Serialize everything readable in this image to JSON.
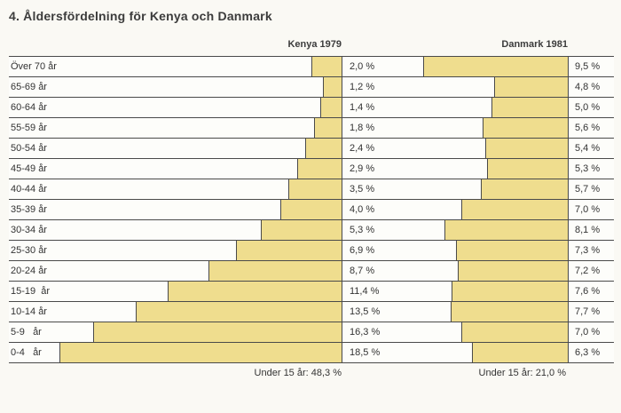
{
  "title": "4. Åldersfördelning för Kenya och Danmark",
  "chart_data": {
    "type": "bar",
    "orientation": "horizontal",
    "title": "4. Åldersfördelning för Kenya och Danmark",
    "categories": [
      "Över 70 år",
      "65-69 år",
      "60-64 år",
      "55-59 år",
      "50-54 år",
      "45-49 år",
      "40-44 år",
      "35-39 år",
      "30-34 år",
      "25-30 år",
      "20-24 år",
      "15-19  år",
      "10-14 år",
      "5-9   år",
      "0-4   år"
    ],
    "series": [
      {
        "name": "Kenya 1979",
        "values": [
          2.0,
          1.2,
          1.4,
          1.8,
          2.4,
          2.9,
          3.5,
          4.0,
          5.3,
          6.9,
          8.7,
          11.4,
          13.5,
          16.3,
          18.5
        ],
        "value_labels": [
          "2,0 %",
          "1,2 %",
          "1,4 %",
          "1,8 %",
          "2,4 %",
          "2,9 %",
          "3,5 %",
          "4,0 %",
          "5,3 %",
          "6,9 %",
          "8,7 %",
          "11,4 %",
          "13,5 %",
          "16,3 %",
          "18,5 %"
        ],
        "summary": "Under 15 år: 48,3 %"
      },
      {
        "name": "Danmark 1981",
        "values": [
          9.5,
          4.8,
          5.0,
          5.6,
          5.4,
          5.3,
          5.7,
          7.0,
          8.1,
          7.3,
          7.2,
          7.6,
          7.7,
          7.0,
          6.3
        ],
        "value_labels": [
          "9,5 %",
          "4,8 %",
          "5,0 %",
          "5,6 %",
          "5,4 %",
          "5,3 %",
          "5,7 %",
          "7,0 %",
          "8,1 %",
          "7,3 %",
          "7,2 %",
          "7,6 %",
          "7,7 %",
          "7,0 %",
          "6,3 %"
        ],
        "summary": "Under 15 år: 21,0 %"
      }
    ],
    "bar_color": "#efdd8e",
    "line_color": "#4a4a4a",
    "xlim": [
      0,
      20
    ],
    "xlabel": "",
    "ylabel": "",
    "legend_position": "top",
    "grid": "row-separators",
    "bars_right_anchored": true
  }
}
